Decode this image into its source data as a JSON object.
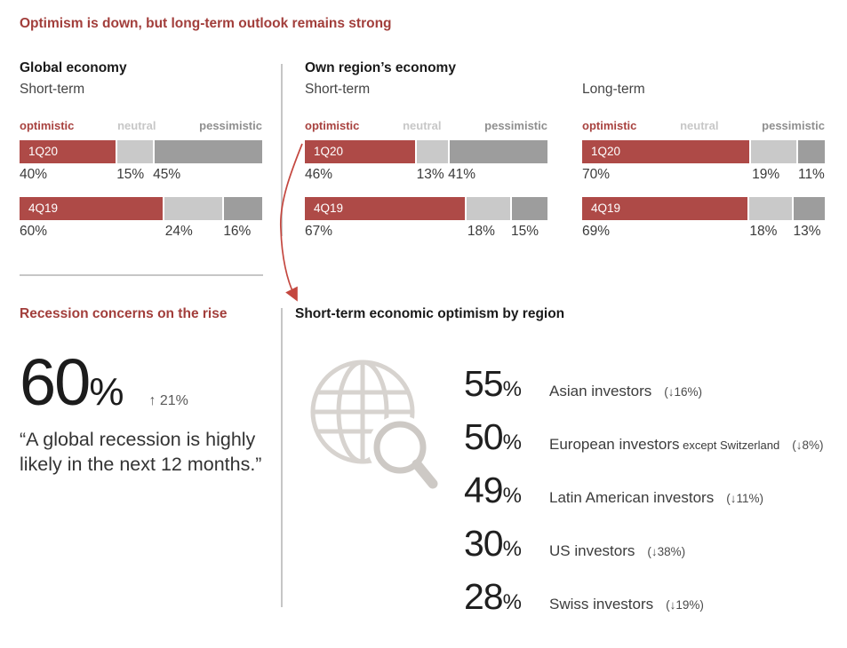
{
  "page": {
    "title": "Optimism is down, but long-term outlook remains strong"
  },
  "colors": {
    "heading_red": "#A23E3B",
    "bar_red": "#AE4A47",
    "neutral_gray": "#C9C9C9",
    "pessimistic_gray": "#9D9D9D",
    "arrow_red": "#C4473F",
    "icon_gray": "#D7D3CF"
  },
  "chart_data": [
    {
      "type": "bar",
      "group": "Global economy",
      "subtitle": "Short-term",
      "legend": [
        "optimistic",
        "neutral",
        "pessimistic"
      ],
      "series": [
        {
          "name": "1Q20",
          "optimistic": 40,
          "neutral": 15,
          "pessimistic": 45
        },
        {
          "name": "4Q19",
          "optimistic": 60,
          "neutral": 24,
          "pessimistic": 16
        }
      ]
    },
    {
      "type": "bar",
      "group": "Own region’s economy",
      "subtitle": "Short-term",
      "legend": [
        "optimistic",
        "neutral",
        "pessimistic"
      ],
      "series": [
        {
          "name": "1Q20",
          "optimistic": 46,
          "neutral": 13,
          "pessimistic": 41
        },
        {
          "name": "4Q19",
          "optimistic": 67,
          "neutral": 18,
          "pessimistic": 15
        }
      ]
    },
    {
      "type": "bar",
      "group": "",
      "subtitle": "Long-term",
      "legend": [
        "optimistic",
        "neutral",
        "pessimistic"
      ],
      "series": [
        {
          "name": "1Q20",
          "optimistic": 70,
          "neutral": 19,
          "pessimistic": 11
        },
        {
          "name": "4Q19",
          "optimistic": 69,
          "neutral": 18,
          "pessimistic": 13
        }
      ]
    }
  ],
  "recession": {
    "heading": "Recession concerns on the rise",
    "value": "60",
    "percent_sign": "%",
    "delta": "↑ 21%",
    "quote_line1": "“A global recession is highly",
    "quote_line2": "likely in the next 12 months.”"
  },
  "by_region": {
    "heading": "Short-term economic optimism by region",
    "icon": "globe-magnifier-icon",
    "percent_sign": "%",
    "items": [
      {
        "value": "55",
        "label": "Asian investors",
        "suffix": "",
        "delta": "(↓16%)"
      },
      {
        "value": "50",
        "label": "European investors",
        "suffix": "except Switzerland",
        "delta": "(↓8%)"
      },
      {
        "value": "49",
        "label": "Latin American investors",
        "suffix": "",
        "delta": "(↓11%)"
      },
      {
        "value": "30",
        "label": "US investors",
        "suffix": "",
        "delta": "(↓38%)"
      },
      {
        "value": "28",
        "label": "Swiss investors",
        "suffix": "",
        "delta": "(↓19%)"
      }
    ]
  }
}
